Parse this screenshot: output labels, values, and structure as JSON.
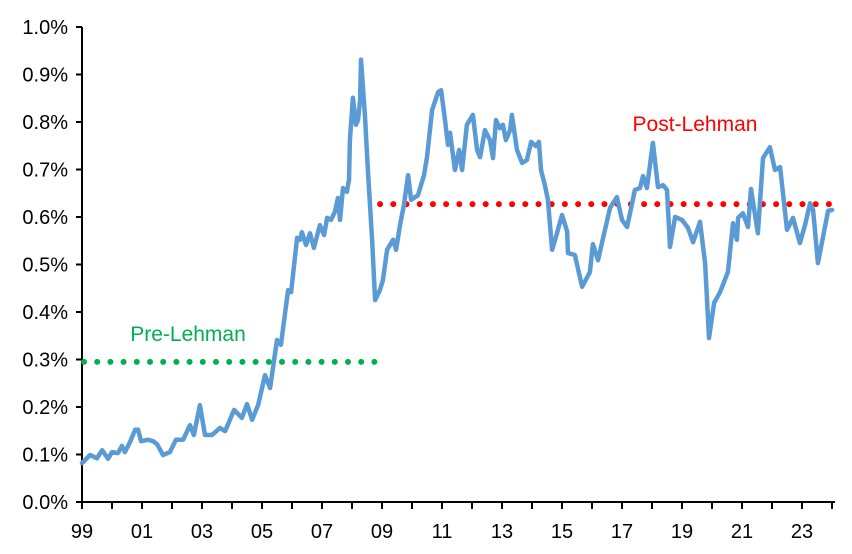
{
  "chart_data": {
    "type": "line",
    "title": "",
    "xlabel": "",
    "ylabel": "",
    "xlim": [
      1999,
      2024.1
    ],
    "ylim": [
      0,
      1.0
    ],
    "grid": false,
    "x_ticks": [
      {
        "value": 1999,
        "label": "99"
      },
      {
        "value": 2001,
        "label": "01"
      },
      {
        "value": 2003,
        "label": "03"
      },
      {
        "value": 2005,
        "label": "05"
      },
      {
        "value": 2007,
        "label": "07"
      },
      {
        "value": 2009,
        "label": "09"
      },
      {
        "value": 2011,
        "label": "11"
      },
      {
        "value": 2013,
        "label": "13"
      },
      {
        "value": 2015,
        "label": "15"
      },
      {
        "value": 2017,
        "label": "17"
      },
      {
        "value": 2019,
        "label": "19"
      },
      {
        "value": 2021,
        "label": "21"
      },
      {
        "value": 2023,
        "label": "23"
      }
    ],
    "y_ticks": [
      {
        "value": 0.0,
        "label": "0.0%"
      },
      {
        "value": 0.1,
        "label": "0.1%"
      },
      {
        "value": 0.2,
        "label": "0.2%"
      },
      {
        "value": 0.3,
        "label": "0.3%"
      },
      {
        "value": 0.4,
        "label": "0.4%"
      },
      {
        "value": 0.5,
        "label": "0.5%"
      },
      {
        "value": 0.6,
        "label": "0.6%"
      },
      {
        "value": 0.7,
        "label": "0.7%"
      },
      {
        "value": 0.8,
        "label": "0.8%"
      },
      {
        "value": 0.9,
        "label": "0.9%"
      },
      {
        "value": 1.0,
        "label": "1.0%"
      }
    ],
    "series": [
      {
        "color": "#5b9bd5",
        "points": [
          [
            1999.0,
            0.082
          ],
          [
            1999.27,
            0.099
          ],
          [
            1999.5,
            0.092
          ],
          [
            1999.67,
            0.109
          ],
          [
            1999.87,
            0.091
          ],
          [
            2000.0,
            0.105
          ],
          [
            2000.2,
            0.103
          ],
          [
            2000.33,
            0.118
          ],
          [
            2000.43,
            0.105
          ],
          [
            2000.6,
            0.126
          ],
          [
            2000.77,
            0.152
          ],
          [
            2000.87,
            0.152
          ],
          [
            2000.97,
            0.128
          ],
          [
            2001.2,
            0.131
          ],
          [
            2001.37,
            0.128
          ],
          [
            2001.5,
            0.122
          ],
          [
            2001.7,
            0.099
          ],
          [
            2001.93,
            0.105
          ],
          [
            2002.13,
            0.131
          ],
          [
            2002.37,
            0.131
          ],
          [
            2002.6,
            0.162
          ],
          [
            2002.73,
            0.141
          ],
          [
            2002.93,
            0.204
          ],
          [
            2003.1,
            0.141
          ],
          [
            2003.33,
            0.141
          ],
          [
            2003.6,
            0.156
          ],
          [
            2003.77,
            0.149
          ],
          [
            2004.07,
            0.194
          ],
          [
            2004.33,
            0.177
          ],
          [
            2004.5,
            0.206
          ],
          [
            2004.67,
            0.173
          ],
          [
            2004.87,
            0.204
          ],
          [
            2005.1,
            0.267
          ],
          [
            2005.27,
            0.24
          ],
          [
            2005.5,
            0.341
          ],
          [
            2005.63,
            0.331
          ],
          [
            2005.87,
            0.446
          ],
          [
            2005.97,
            0.442
          ],
          [
            2006.17,
            0.556
          ],
          [
            2006.27,
            0.552
          ],
          [
            2006.33,
            0.568
          ],
          [
            2006.47,
            0.541
          ],
          [
            2006.6,
            0.566
          ],
          [
            2006.73,
            0.535
          ],
          [
            2006.93,
            0.583
          ],
          [
            2007.07,
            0.562
          ],
          [
            2007.17,
            0.598
          ],
          [
            2007.3,
            0.594
          ],
          [
            2007.43,
            0.611
          ],
          [
            2007.53,
            0.64
          ],
          [
            2007.6,
            0.594
          ],
          [
            2007.7,
            0.661
          ],
          [
            2007.83,
            0.653
          ],
          [
            2007.9,
            0.678
          ],
          [
            2007.93,
            0.762
          ],
          [
            2008.03,
            0.851
          ],
          [
            2008.13,
            0.794
          ],
          [
            2008.2,
            0.804
          ],
          [
            2008.27,
            0.846
          ],
          [
            2008.3,
            0.931
          ],
          [
            2008.43,
            0.815
          ],
          [
            2008.53,
            0.699
          ],
          [
            2008.67,
            0.552
          ],
          [
            2008.77,
            0.425
          ],
          [
            2008.93,
            0.446
          ],
          [
            2009.03,
            0.467
          ],
          [
            2009.17,
            0.531
          ],
          [
            2009.37,
            0.552
          ],
          [
            2009.47,
            0.531
          ],
          [
            2009.6,
            0.583
          ],
          [
            2009.73,
            0.625
          ],
          [
            2009.87,
            0.688
          ],
          [
            2009.97,
            0.636
          ],
          [
            2010.2,
            0.646
          ],
          [
            2010.4,
            0.688
          ],
          [
            2010.5,
            0.726
          ],
          [
            2010.67,
            0.825
          ],
          [
            2010.87,
            0.863
          ],
          [
            2010.97,
            0.867
          ],
          [
            2011.1,
            0.804
          ],
          [
            2011.2,
            0.752
          ],
          [
            2011.27,
            0.777
          ],
          [
            2011.43,
            0.699
          ],
          [
            2011.57,
            0.741
          ],
          [
            2011.67,
            0.699
          ],
          [
            2011.83,
            0.794
          ],
          [
            2012.03,
            0.815
          ],
          [
            2012.17,
            0.741
          ],
          [
            2012.27,
            0.726
          ],
          [
            2012.43,
            0.783
          ],
          [
            2012.6,
            0.762
          ],
          [
            2012.7,
            0.724
          ],
          [
            2012.8,
            0.804
          ],
          [
            2012.93,
            0.787
          ],
          [
            2013.03,
            0.794
          ],
          [
            2013.13,
            0.762
          ],
          [
            2013.27,
            0.783
          ],
          [
            2013.33,
            0.815
          ],
          [
            2013.5,
            0.741
          ],
          [
            2013.67,
            0.714
          ],
          [
            2013.83,
            0.72
          ],
          [
            2013.97,
            0.758
          ],
          [
            2014.13,
            0.749
          ],
          [
            2014.23,
            0.758
          ],
          [
            2014.3,
            0.699
          ],
          [
            2014.43,
            0.667
          ],
          [
            2014.53,
            0.636
          ],
          [
            2014.67,
            0.531
          ],
          [
            2014.77,
            0.552
          ],
          [
            2015.0,
            0.604
          ],
          [
            2015.17,
            0.57
          ],
          [
            2015.2,
            0.524
          ],
          [
            2015.43,
            0.52
          ],
          [
            2015.67,
            0.453
          ],
          [
            2015.93,
            0.484
          ],
          [
            2016.03,
            0.543
          ],
          [
            2016.2,
            0.509
          ],
          [
            2016.6,
            0.619
          ],
          [
            2016.83,
            0.642
          ],
          [
            2017.0,
            0.594
          ],
          [
            2017.17,
            0.579
          ],
          [
            2017.43,
            0.657
          ],
          [
            2017.6,
            0.661
          ],
          [
            2017.7,
            0.686
          ],
          [
            2017.83,
            0.661
          ],
          [
            2018.03,
            0.756
          ],
          [
            2018.2,
            0.663
          ],
          [
            2018.37,
            0.667
          ],
          [
            2018.5,
            0.657
          ],
          [
            2018.6,
            0.537
          ],
          [
            2018.77,
            0.6
          ],
          [
            2019.0,
            0.594
          ],
          [
            2019.2,
            0.577
          ],
          [
            2019.37,
            0.547
          ],
          [
            2019.6,
            0.59
          ],
          [
            2019.77,
            0.503
          ],
          [
            2019.9,
            0.345
          ],
          [
            2020.07,
            0.419
          ],
          [
            2020.27,
            0.442
          ],
          [
            2020.53,
            0.484
          ],
          [
            2020.7,
            0.587
          ],
          [
            2020.83,
            0.552
          ],
          [
            2020.87,
            0.598
          ],
          [
            2021.03,
            0.608
          ],
          [
            2021.2,
            0.579
          ],
          [
            2021.3,
            0.659
          ],
          [
            2021.53,
            0.566
          ],
          [
            2021.7,
            0.724
          ],
          [
            2021.93,
            0.747
          ],
          [
            2022.1,
            0.699
          ],
          [
            2022.27,
            0.705
          ],
          [
            2022.5,
            0.573
          ],
          [
            2022.7,
            0.598
          ],
          [
            2022.93,
            0.545
          ],
          [
            2023.1,
            0.583
          ],
          [
            2023.27,
            0.629
          ],
          [
            2023.37,
            0.615
          ],
          [
            2023.53,
            0.503
          ],
          [
            2023.7,
            0.558
          ],
          [
            2023.87,
            0.613
          ],
          [
            2024.0,
            0.615
          ]
        ]
      }
    ],
    "reference_lines": [
      {
        "label": "Pre-Lehman",
        "value": 0.295,
        "x_range": [
          1999,
          2008.85
        ],
        "color": "#00b050",
        "style": "dotted"
      },
      {
        "label": "Post-Lehman",
        "value": 0.627,
        "x_range": [
          2008.87,
          2024.0
        ],
        "color": "#ff0000",
        "style": "dotted"
      }
    ]
  }
}
